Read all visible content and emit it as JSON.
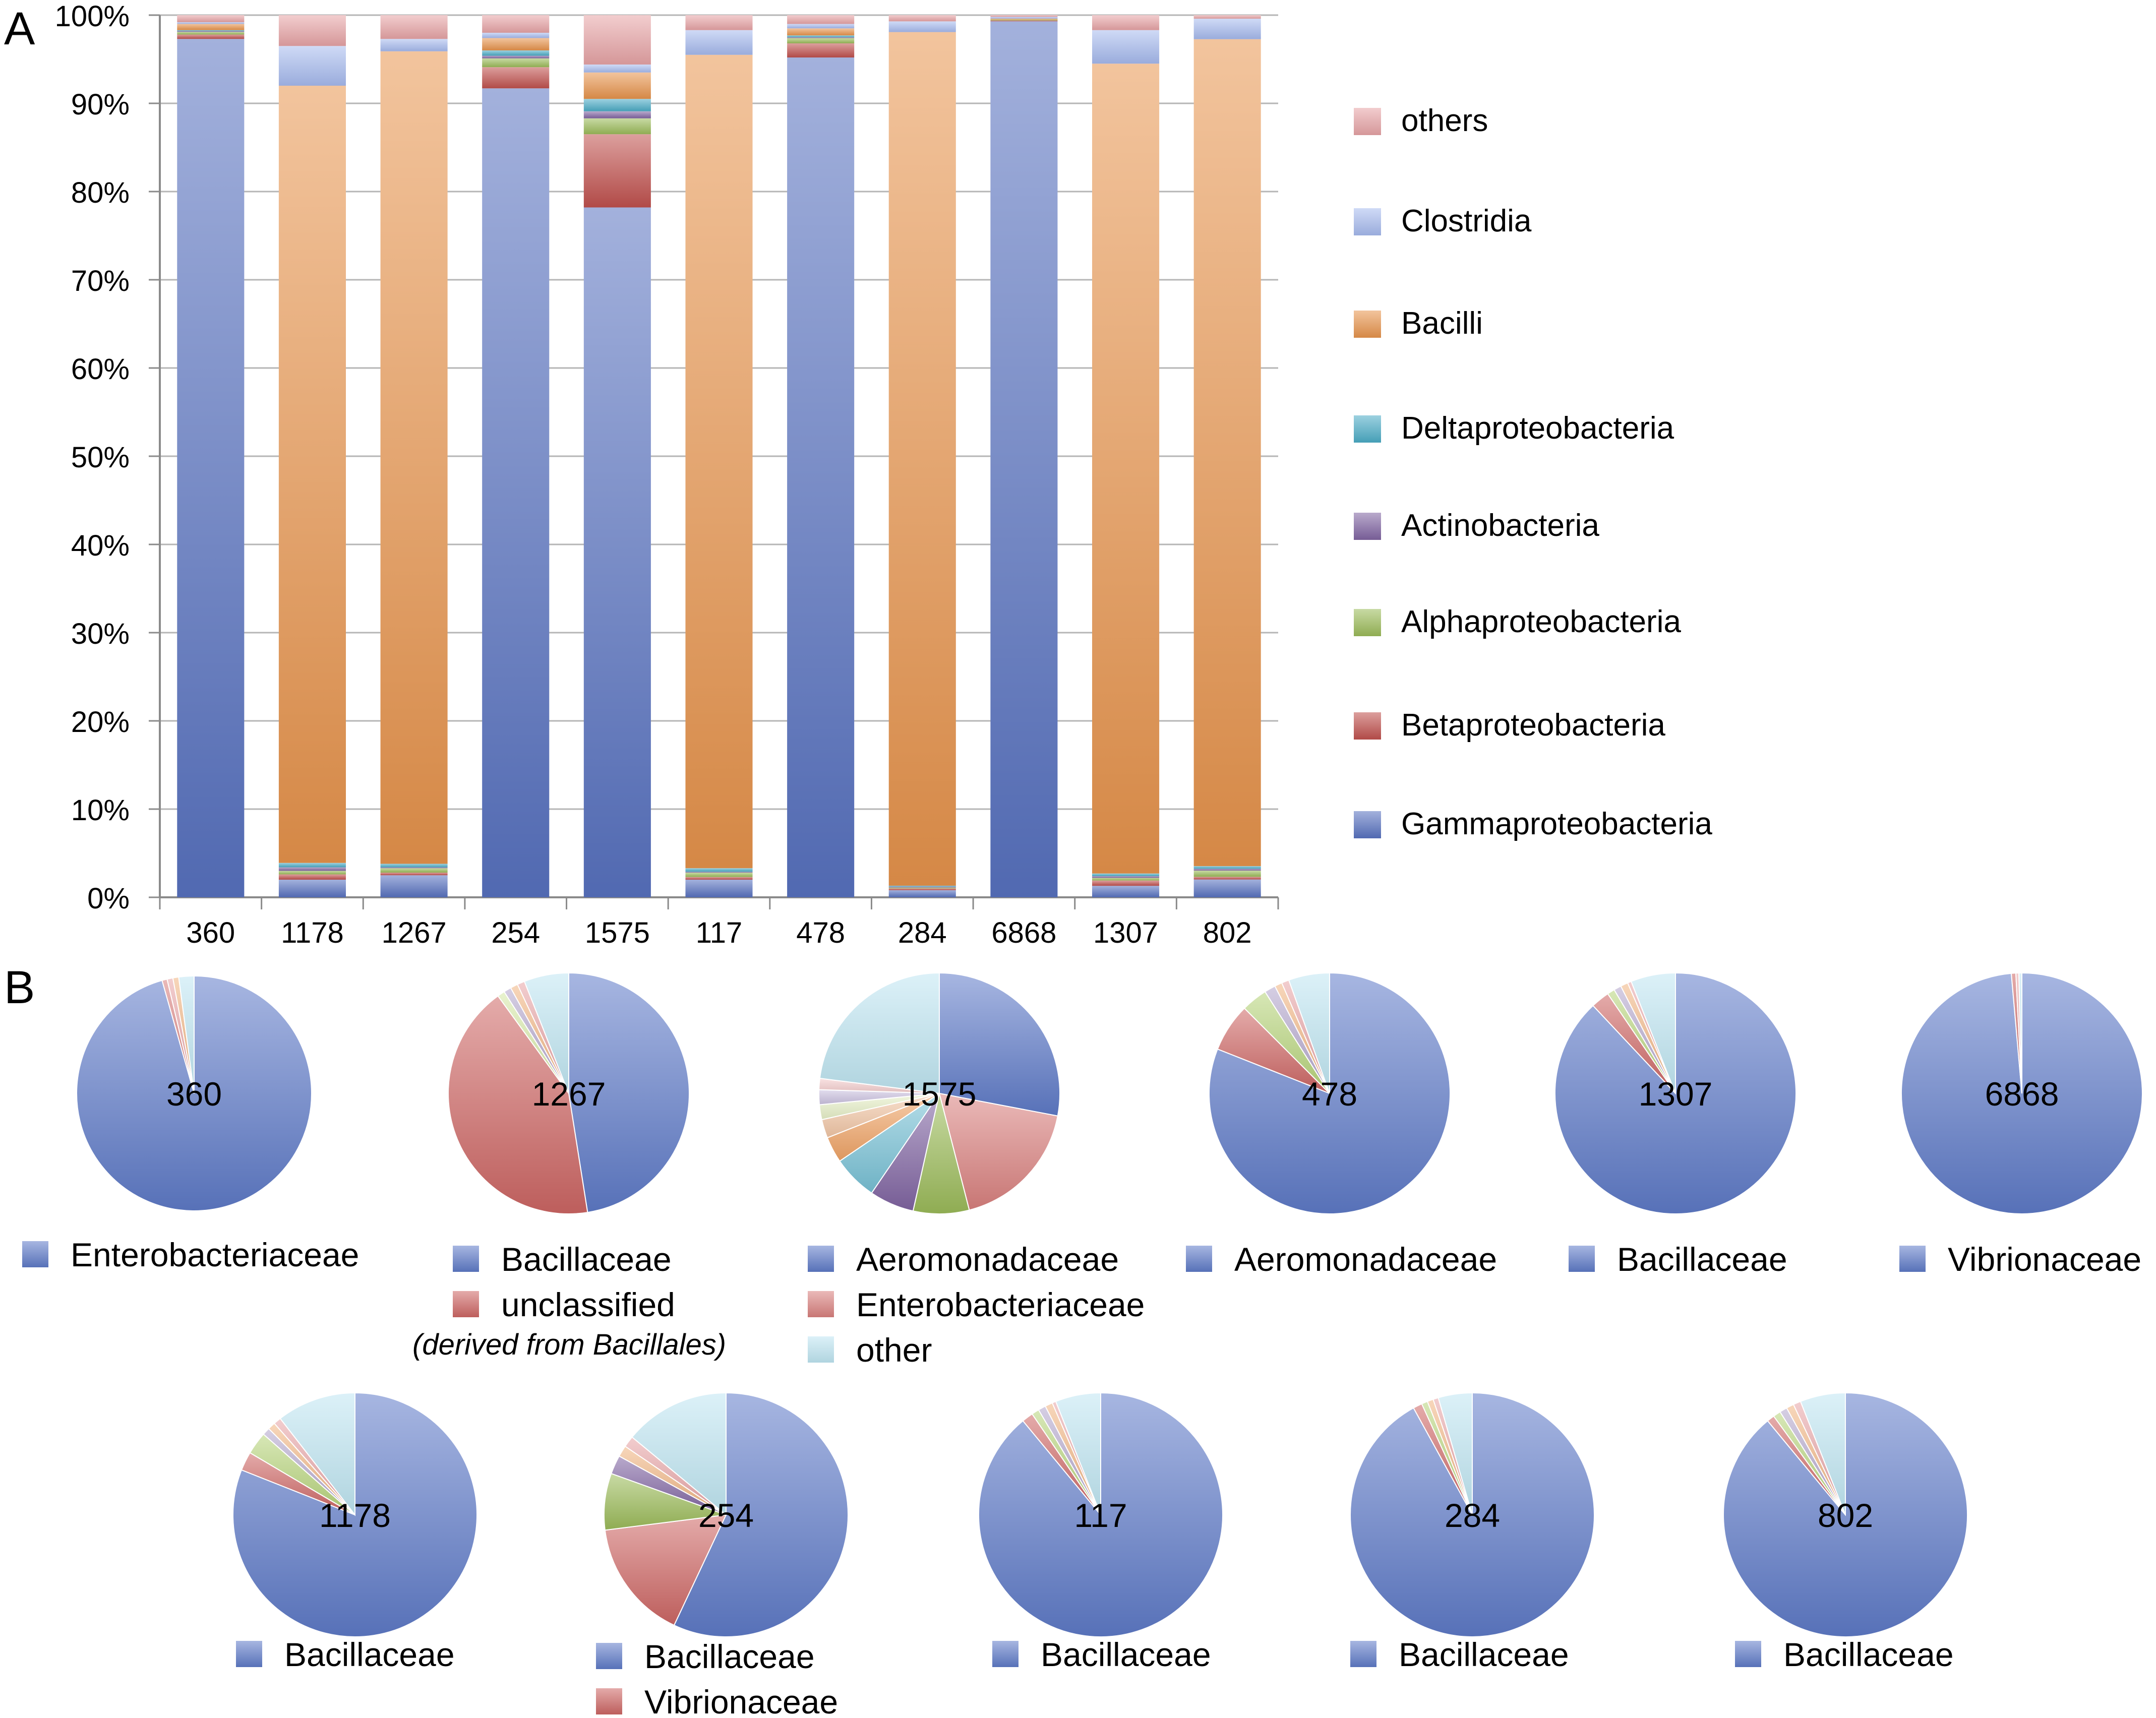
{
  "panels": {
    "a": "A",
    "b": "B"
  },
  "chart_data": [
    {
      "type": "bar",
      "stacked": true,
      "percent": true,
      "categories": [
        "360",
        "1178",
        "1267",
        "254",
        "1575",
        "117",
        "478",
        "284",
        "6868",
        "1307",
        "802"
      ],
      "yticks": [
        "0%",
        "10%",
        "20%",
        "30%",
        "40%",
        "50%",
        "60%",
        "70%",
        "80%",
        "90%",
        "100%"
      ],
      "ylim": [
        0,
        100
      ],
      "grid": true,
      "legend_position": "right",
      "series": [
        {
          "name": "Gammaproteobacteria",
          "color": "#5872c0",
          "values": [
            97.3,
            2.0,
            2.5,
            91.7,
            78.2,
            2.0,
            95.2,
            0.8,
            99.3,
            1.3,
            2.0
          ]
        },
        {
          "name": "Betaproteobacteria",
          "color": "#c0504d",
          "values": [
            0.5,
            0.6,
            0.3,
            2.4,
            8.3,
            0.3,
            1.6,
            0.2,
            0.1,
            0.6,
            0.3
          ]
        },
        {
          "name": "Alphaproteobacteria",
          "color": "#9bbb59",
          "values": [
            0.3,
            0.4,
            0.5,
            1.0,
            1.8,
            0.5,
            0.6,
            0.1,
            0.1,
            0.3,
            0.7
          ]
        },
        {
          "name": "Actinobacteria",
          "color": "#8064a2",
          "values": [
            0.1,
            0.4,
            0.1,
            0.3,
            0.8,
            0.1,
            0.1,
            0.1,
            0.0,
            0.2,
            0.2
          ]
        },
        {
          "name": "Deltaproteobacteria",
          "color": "#4bacc6",
          "values": [
            0.1,
            0.5,
            0.4,
            0.6,
            1.4,
            0.4,
            0.2,
            0.1,
            0.0,
            0.3,
            0.3
          ]
        },
        {
          "name": "Bacilli",
          "color": "#e8944c",
          "values": [
            0.7,
            88.1,
            92.1,
            1.4,
            3.0,
            92.2,
            0.8,
            95.8,
            0.1,
            91.8,
            92.8
          ]
        },
        {
          "name": "Clostridia",
          "color": "#a7bbef",
          "values": [
            0.2,
            4.5,
            1.4,
            0.6,
            0.9,
            2.8,
            0.5,
            1.2,
            0.2,
            3.8,
            2.3
          ]
        },
        {
          "name": "others",
          "color": "#e8a4a6",
          "values": [
            0.8,
            3.5,
            2.7,
            2.0,
            5.6,
            1.7,
            1.0,
            0.7,
            0.2,
            1.7,
            0.4
          ]
        }
      ]
    },
    {
      "type": "pie",
      "charts": [
        {
          "label": "360",
          "slices": [
            {
              "name": "Enterobacteriaceae",
              "value": 95.6,
              "color": "#5f7bc8"
            },
            {
              "name": "",
              "value": 0.7,
              "color": "#d9807e"
            },
            {
              "name": "",
              "value": 0.8,
              "color": "#e8a4a6"
            },
            {
              "name": "",
              "value": 0.8,
              "color": "#f0b482"
            },
            {
              "name": "",
              "value": 2.1,
              "color": "#bfe6f2"
            }
          ]
        },
        {
          "label": "1267",
          "slices": [
            {
              "name": "Bacillaceae",
              "value": 47.5,
              "color": "#5f7bc8"
            },
            {
              "name": "unclassified",
              "value": 42.5,
              "color": "#cd6664"
            },
            {
              "name": "",
              "value": 1.0,
              "color": "#d5e8a5"
            },
            {
              "name": "",
              "value": 1.0,
              "color": "#b3a6cc"
            },
            {
              "name": "",
              "value": 1.0,
              "color": "#f0b482"
            },
            {
              "name": "",
              "value": 1.0,
              "color": "#e8a4a6"
            },
            {
              "name": "",
              "value": 6.0,
              "color": "#bfe6f2"
            }
          ]
        },
        {
          "label": "1575",
          "slices": [
            {
              "name": "Aeromonadaceae",
              "value": 28.0,
              "color": "#5f7bc8"
            },
            {
              "name": "Enterobacteriaceae",
              "value": 18.0,
              "color": "#d9807e"
            },
            {
              "name": "",
              "value": 7.5,
              "color": "#9bbb59"
            },
            {
              "name": "",
              "value": 6.0,
              "color": "#8064a2"
            },
            {
              "name": "",
              "value": 6.0,
              "color": "#78c1d6"
            },
            {
              "name": "",
              "value": 3.5,
              "color": "#f0a466"
            },
            {
              "name": "",
              "value": 2.5,
              "color": "#f2c7a6"
            },
            {
              "name": "",
              "value": 2.0,
              "color": "#e8f0c8"
            },
            {
              "name": "",
              "value": 2.0,
              "color": "#cbc2e0"
            },
            {
              "name": "",
              "value": 1.5,
              "color": "#f4cccc"
            },
            {
              "name": "other",
              "value": 23.0,
              "color": "#bfe6f2"
            }
          ]
        },
        {
          "label": "478",
          "slices": [
            {
              "name": "Aeromonadaceae",
              "value": 81.0,
              "color": "#5f7bc8"
            },
            {
              "name": "",
              "value": 6.5,
              "color": "#cd6664"
            },
            {
              "name": "",
              "value": 3.5,
              "color": "#b7d47a"
            },
            {
              "name": "",
              "value": 1.5,
              "color": "#b3a6cc"
            },
            {
              "name": "",
              "value": 1.0,
              "color": "#f0b482"
            },
            {
              "name": "",
              "value": 1.0,
              "color": "#e8a4a6"
            },
            {
              "name": "",
              "value": 5.5,
              "color": "#bfe6f2"
            }
          ]
        },
        {
          "label": "1307",
          "slices": [
            {
              "name": "Bacillaceae",
              "value": 88.0,
              "color": "#5f7bc8"
            },
            {
              "name": "",
              "value": 2.5,
              "color": "#cd6664"
            },
            {
              "name": "",
              "value": 1.0,
              "color": "#b7d47a"
            },
            {
              "name": "",
              "value": 1.0,
              "color": "#b3a6cc"
            },
            {
              "name": "",
              "value": 1.0,
              "color": "#f0b482"
            },
            {
              "name": "",
              "value": 0.5,
              "color": "#e8a4a6"
            },
            {
              "name": "",
              "value": 6.0,
              "color": "#bfe6f2"
            }
          ]
        },
        {
          "label": "6868",
          "slices": [
            {
              "name": "Vibrionaceae",
              "value": 98.6,
              "color": "#5f7bc8"
            },
            {
              "name": "",
              "value": 0.6,
              "color": "#cd6664"
            },
            {
              "name": "",
              "value": 0.4,
              "color": "#e8a4a6"
            },
            {
              "name": "",
              "value": 0.4,
              "color": "#bfe6f2"
            }
          ]
        },
        {
          "label": "1178",
          "slices": [
            {
              "name": "Bacillaceae",
              "value": 81.0,
              "color": "#5f7bc8"
            },
            {
              "name": "",
              "value": 2.5,
              "color": "#cd6664"
            },
            {
              "name": "",
              "value": 3.0,
              "color": "#b7d47a"
            },
            {
              "name": "",
              "value": 1.0,
              "color": "#b3a6cc"
            },
            {
              "name": "",
              "value": 1.0,
              "color": "#f0b482"
            },
            {
              "name": "",
              "value": 1.0,
              "color": "#e8a4a6"
            },
            {
              "name": "",
              "value": 10.5,
              "color": "#bfe6f2"
            }
          ]
        },
        {
          "label": "254",
          "slices": [
            {
              "name": "Bacillaceae",
              "value": 57.0,
              "color": "#5f7bc8"
            },
            {
              "name": "Vibrionaceae",
              "value": 16.0,
              "color": "#cd6664"
            },
            {
              "name": "",
              "value": 7.5,
              "color": "#9bbb59"
            },
            {
              "name": "",
              "value": 2.5,
              "color": "#8064a2"
            },
            {
              "name": "",
              "value": 1.5,
              "color": "#f0b482"
            },
            {
              "name": "",
              "value": 1.5,
              "color": "#e8a4a6"
            },
            {
              "name": "",
              "value": 14.0,
              "color": "#bfe6f2"
            }
          ]
        },
        {
          "label": "117",
          "slices": [
            {
              "name": "Bacillaceae",
              "value": 89.0,
              "color": "#5f7bc8"
            },
            {
              "name": "",
              "value": 1.5,
              "color": "#cd6664"
            },
            {
              "name": "",
              "value": 1.0,
              "color": "#b7d47a"
            },
            {
              "name": "",
              "value": 1.0,
              "color": "#b3a6cc"
            },
            {
              "name": "",
              "value": 1.0,
              "color": "#f0b482"
            },
            {
              "name": "",
              "value": 0.5,
              "color": "#e8a4a6"
            },
            {
              "name": "",
              "value": 6.0,
              "color": "#bfe6f2"
            }
          ]
        },
        {
          "label": "284",
          "slices": [
            {
              "name": "Bacillaceae",
              "value": 92.0,
              "color": "#5f7bc8"
            },
            {
              "name": "",
              "value": 1.2,
              "color": "#cd6664"
            },
            {
              "name": "",
              "value": 0.8,
              "color": "#b7d47a"
            },
            {
              "name": "",
              "value": 0.8,
              "color": "#f0b482"
            },
            {
              "name": "",
              "value": 0.7,
              "color": "#e8a4a6"
            },
            {
              "name": "",
              "value": 4.5,
              "color": "#bfe6f2"
            }
          ]
        },
        {
          "label": "802",
          "slices": [
            {
              "name": "Bacillaceae",
              "value": 89.0,
              "color": "#5f7bc8"
            },
            {
              "name": "",
              "value": 1.0,
              "color": "#cd6664"
            },
            {
              "name": "",
              "value": 1.0,
              "color": "#b7d47a"
            },
            {
              "name": "",
              "value": 1.0,
              "color": "#b3a6cc"
            },
            {
              "name": "",
              "value": 1.0,
              "color": "#f0b482"
            },
            {
              "name": "",
              "value": 1.0,
              "color": "#e8a4a6"
            },
            {
              "name": "",
              "value": 6.0,
              "color": "#bfe6f2"
            }
          ]
        }
      ],
      "legends": [
        {
          "chart": "360",
          "items": [
            {
              "text": "Enterobacteriaceae",
              "color": "#5f7bc8"
            }
          ]
        },
        {
          "chart": "1267",
          "items": [
            {
              "text": "Bacillaceae",
              "color": "#5f7bc8"
            },
            {
              "text": "unclassified",
              "color": "#cd6664"
            }
          ],
          "note": "(derived from Bacillales)"
        },
        {
          "chart": "1575",
          "items": [
            {
              "text": "Aeromonadaceae",
              "color": "#5f7bc8"
            },
            {
              "text": "Enterobacteriaceae",
              "color": "#d9807e"
            },
            {
              "text": "other",
              "color": "#bfe6f2"
            }
          ]
        },
        {
          "chart": "478",
          "items": [
            {
              "text": "Aeromonadaceae",
              "color": "#5f7bc8"
            }
          ]
        },
        {
          "chart": "1307",
          "items": [
            {
              "text": "Bacillaceae",
              "color": "#5f7bc8"
            }
          ]
        },
        {
          "chart": "6868",
          "items": [
            {
              "text": "Vibrionaceae",
              "color": "#5f7bc8"
            }
          ]
        },
        {
          "chart": "1178",
          "items": [
            {
              "text": "Bacillaceae",
              "color": "#5f7bc8"
            }
          ]
        },
        {
          "chart": "254",
          "items": [
            {
              "text": "Bacillaceae",
              "color": "#5f7bc8"
            },
            {
              "text": "Vibrionaceae",
              "color": "#cd6664"
            }
          ]
        },
        {
          "chart": "117",
          "items": [
            {
              "text": "Bacillaceae",
              "color": "#5f7bc8"
            }
          ]
        },
        {
          "chart": "284",
          "items": [
            {
              "text": "Bacillaceae",
              "color": "#5f7bc8"
            }
          ]
        },
        {
          "chart": "802",
          "items": [
            {
              "text": "Bacillaceae",
              "color": "#5f7bc8"
            }
          ]
        }
      ]
    }
  ]
}
